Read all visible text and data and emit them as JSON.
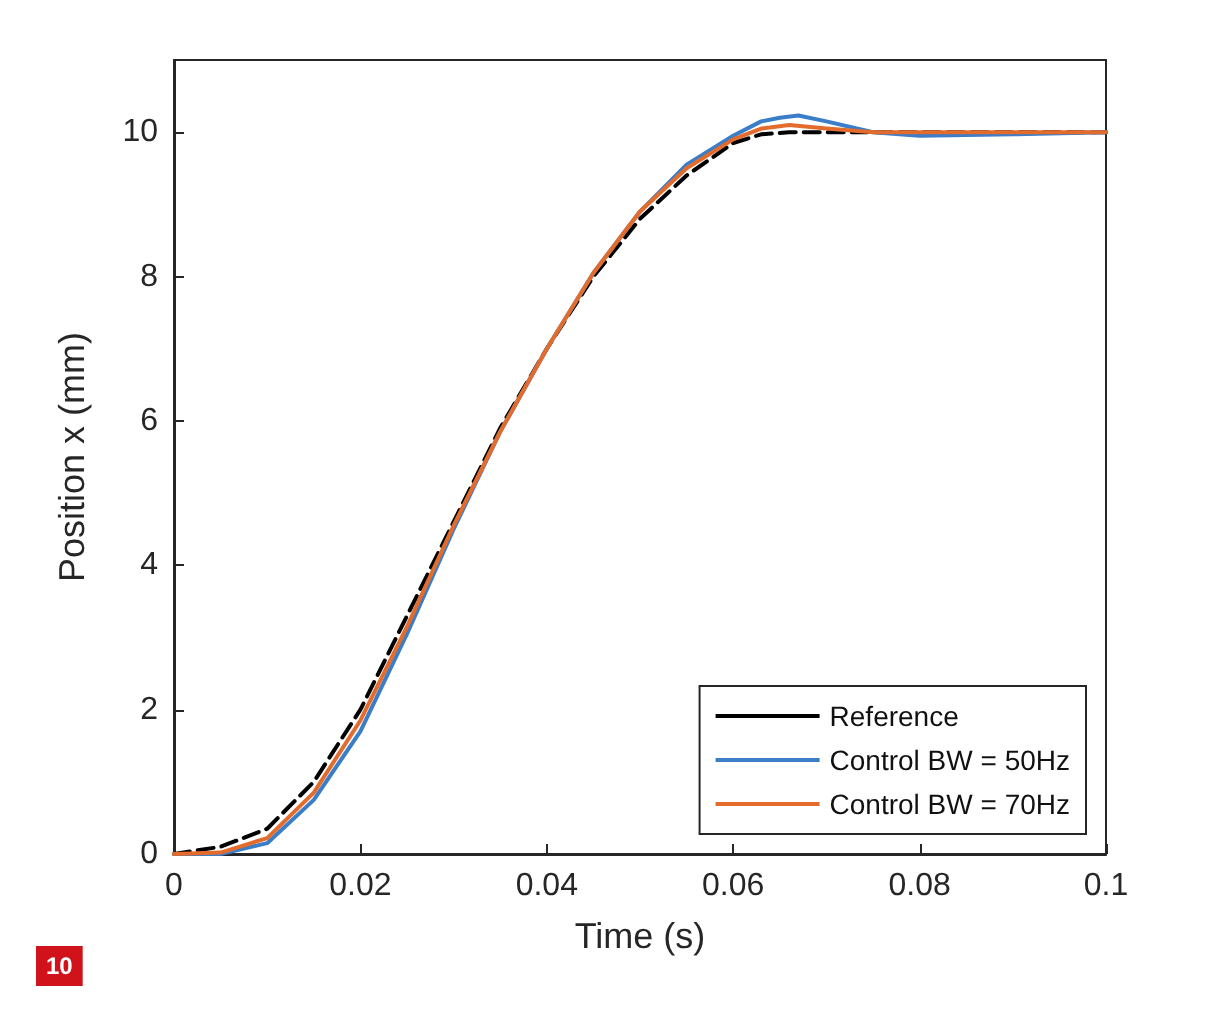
{
  "chart_data": {
    "type": "line",
    "xlabel": "Time (s)",
    "ylabel": "Position x (mm)",
    "xlim": [
      0,
      0.1
    ],
    "ylim": [
      0,
      11
    ],
    "xticks": [
      0,
      0.02,
      0.04,
      0.06,
      0.08,
      0.1
    ],
    "yticks": [
      0,
      2,
      4,
      6,
      8,
      10
    ],
    "grid": false,
    "legend": "bottom right",
    "marker": "none",
    "annotations": [
      "10"
    ],
    "series": [
      {
        "name": "Reference",
        "color": "#000000",
        "line_style": "dashed",
        "x": [
          0,
          0.005,
          0.01,
          0.015,
          0.02,
          0.025,
          0.03,
          0.035,
          0.04,
          0.045,
          0.05,
          0.055,
          0.06,
          0.063,
          0.066,
          0.07,
          0.08,
          0.09,
          0.1
        ],
        "values": [
          0,
          0.1,
          0.35,
          1.0,
          2.0,
          3.3,
          4.6,
          5.9,
          7.0,
          8.0,
          8.8,
          9.4,
          9.85,
          9.97,
          10,
          10,
          10,
          10,
          10
        ]
      },
      {
        "name": "Control BW = 50Hz",
        "color": "#3a7dc9",
        "line_style": "solid",
        "x": [
          0,
          0.005,
          0.01,
          0.015,
          0.02,
          0.025,
          0.03,
          0.035,
          0.04,
          0.045,
          0.05,
          0.055,
          0.06,
          0.063,
          0.065,
          0.067,
          0.07,
          0.075,
          0.08,
          0.09,
          0.1
        ],
        "values": [
          0,
          0,
          0.15,
          0.75,
          1.7,
          3.05,
          4.5,
          5.85,
          7.0,
          8.05,
          8.9,
          9.55,
          9.95,
          10.15,
          10.2,
          10.23,
          10.15,
          10.0,
          9.95,
          9.97,
          10
        ]
      },
      {
        "name": "Control BW = 70Hz",
        "color": "#e36c2d",
        "line_style": "solid",
        "x": [
          0,
          0.005,
          0.01,
          0.015,
          0.02,
          0.025,
          0.03,
          0.035,
          0.04,
          0.045,
          0.05,
          0.055,
          0.06,
          0.063,
          0.066,
          0.07,
          0.075,
          0.08,
          0.09,
          0.1
        ],
        "values": [
          0,
          0.02,
          0.22,
          0.85,
          1.85,
          3.15,
          4.55,
          5.85,
          7.0,
          8.05,
          8.9,
          9.5,
          9.9,
          10.05,
          10.1,
          10.05,
          10.0,
          10.0,
          10.0,
          10
        ]
      }
    ]
  }
}
